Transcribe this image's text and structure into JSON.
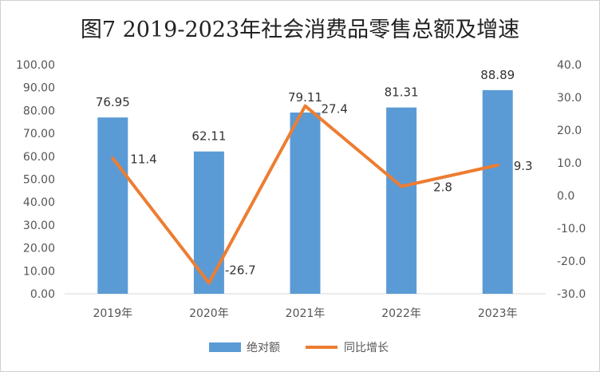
{
  "chart_data": {
    "type": "bar",
    "title": "图7  2019-2023年社会消费品零售总额及增速",
    "categories": [
      "2019年",
      "2020年",
      "2021年",
      "2022年",
      "2023年"
    ],
    "series": [
      {
        "name": "绝对额",
        "type": "bar",
        "axis": "left",
        "color": "#5B9BD5",
        "values": [
          76.95,
          62.11,
          79.11,
          81.31,
          88.89
        ],
        "labels": [
          "76.95",
          "62.11",
          "79.11",
          "81.31",
          "88.89"
        ]
      },
      {
        "name": "同比增长",
        "type": "line",
        "axis": "right",
        "color": "#ED7D31",
        "values": [
          11.4,
          -26.7,
          27.4,
          2.8,
          9.3
        ],
        "labels": [
          "11.4",
          "-26.7",
          "27.4",
          "2.8",
          "9.3"
        ]
      }
    ],
    "left_axis": {
      "ylim": [
        0,
        100
      ],
      "step": 10,
      "tick_labels": [
        "0.00",
        "10.00",
        "20.00",
        "30.00",
        "40.00",
        "50.00",
        "60.00",
        "70.00",
        "80.00",
        "90.00",
        "100.00"
      ]
    },
    "right_axis": {
      "ylim": [
        -30,
        40
      ],
      "step": 10,
      "tick_labels": [
        "-30.0",
        "-20.0",
        "-10.0",
        "0.0",
        "10.0",
        "20.0",
        "30.0",
        "40.0"
      ]
    },
    "grid": false,
    "legend": "bottom"
  }
}
